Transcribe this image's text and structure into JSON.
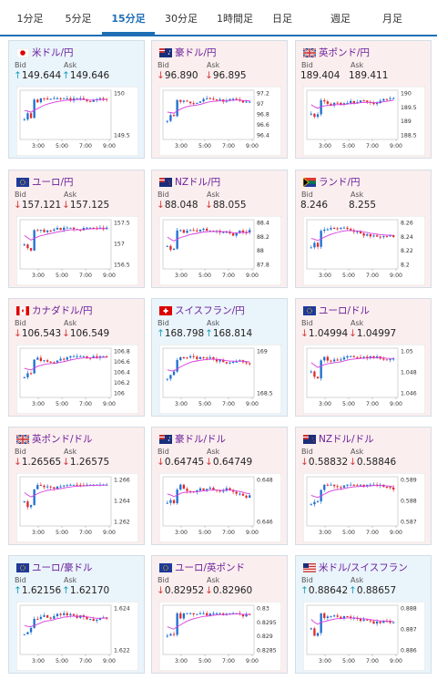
{
  "tabs": [
    "1分足",
    "5分足",
    "15分足",
    "30分足",
    "1時間足",
    "日足",
    "週足",
    "月足"
  ],
  "active_tab": "15分足",
  "bid_label": "Bid",
  "ask_label": "Ask",
  "arrow_up": "↑",
  "arrow_down": "↓",
  "colors": {
    "up_bg": "#eaf4fb",
    "down_bg": "#fbeeee",
    "bull": "#1f6fd0",
    "bear": "#e02b2b",
    "ma": "#d63ce0"
  },
  "cards": [
    {
      "pair": "米ドル/円",
      "flag": "jp",
      "dir": "up",
      "bid_arrow": "↑",
      "ask_arrow": "↑",
      "bid": "149.644",
      "ask": "149.646",
      "yticks": [
        "150",
        "149.5"
      ],
      "xticks": [
        "3:00",
        "5:00",
        "7:00",
        "9:00"
      ]
    },
    {
      "pair": "豪ドル/円",
      "flag": "au",
      "dir": "down",
      "bid_arrow": "↓",
      "ask_arrow": "↓",
      "bid": "96.890",
      "ask": "96.895",
      "yticks": [
        "97.2",
        "97",
        "96.8",
        "96.6",
        "96.4"
      ],
      "xticks": [
        "3:00",
        "5:00",
        "7:00",
        "9:00"
      ]
    },
    {
      "pair": "英ポンド/円",
      "flag": "gb",
      "dir": "down",
      "bid_arrow": "",
      "ask_arrow": "",
      "bid": "189.404",
      "ask": "189.411",
      "yticks": [
        "190",
        "189.5",
        "189",
        "188.5"
      ],
      "xticks": [
        "3:00",
        "5:00",
        "7:00",
        "9:00"
      ]
    },
    {
      "pair": "ユーロ/円",
      "flag": "eu",
      "dir": "down",
      "bid_arrow": "↓",
      "ask_arrow": "↓",
      "bid": "157.121",
      "ask": "157.125",
      "yticks": [
        "157.5",
        "157",
        "156.5"
      ],
      "xticks": [
        "3:00",
        "5:00",
        "7:00",
        "9:00"
      ]
    },
    {
      "pair": "NZドル/円",
      "flag": "nz",
      "dir": "down",
      "bid_arrow": "↓",
      "ask_arrow": "↓",
      "bid": "88.048",
      "ask": "88.055",
      "yticks": [
        "88.4",
        "88.2",
        "88",
        "87.8"
      ],
      "xticks": [
        "3:00",
        "5:00",
        "7:00",
        "9:00"
      ]
    },
    {
      "pair": "ランド/円",
      "flag": "za",
      "dir": "down",
      "bid_arrow": "",
      "ask_arrow": "",
      "bid": "8.246",
      "ask": "8.255",
      "yticks": [
        "8.26",
        "8.24",
        "8.22",
        "8.2"
      ],
      "xticks": [
        "3:00",
        "5:00",
        "7:00",
        "9:00"
      ]
    },
    {
      "pair": "カナダドル/円",
      "flag": "ca",
      "dir": "down",
      "bid_arrow": "↓",
      "ask_arrow": "↓",
      "bid": "106.543",
      "ask": "106.549",
      "yticks": [
        "106.8",
        "106.6",
        "106.4",
        "106.2",
        "106"
      ],
      "xticks": [
        "3:00",
        "5:00",
        "7:00",
        "9:00"
      ]
    },
    {
      "pair": "スイスフラン/円",
      "flag": "ch",
      "dir": "up",
      "bid_arrow": "↑",
      "ask_arrow": "↑",
      "bid": "168.798",
      "ask": "168.814",
      "yticks": [
        "169",
        "168.5"
      ],
      "xticks": [
        "3:00",
        "5:00",
        "7:00",
        "9:00"
      ]
    },
    {
      "pair": "ユーロ/ドル",
      "flag": "eu",
      "dir": "down",
      "bid_arrow": "↓",
      "ask_arrow": "↓",
      "bid": "1.04994",
      "ask": "1.04997",
      "yticks": [
        "1.05",
        "1.048",
        "1.046"
      ],
      "xticks": [
        "3:00",
        "5:00",
        "7:00",
        "9:00"
      ]
    },
    {
      "pair": "英ポンド/ドル",
      "flag": "gb",
      "dir": "down",
      "bid_arrow": "↓",
      "ask_arrow": "↓",
      "bid": "1.26565",
      "ask": "1.26575",
      "yticks": [
        "1.266",
        "1.264",
        "1.262"
      ],
      "xticks": [
        "3:00",
        "5:00",
        "7:00",
        "9:00"
      ]
    },
    {
      "pair": "豪ドル/ドル",
      "flag": "au",
      "dir": "down",
      "bid_arrow": "↓",
      "ask_arrow": "↓",
      "bid": "0.64745",
      "ask": "0.64749",
      "yticks": [
        "0.648",
        "0.646"
      ],
      "xticks": [
        "3:00",
        "5:00",
        "7:00",
        "9:00"
      ]
    },
    {
      "pair": "NZドル/ドル",
      "flag": "nz",
      "dir": "down",
      "bid_arrow": "↓",
      "ask_arrow": "↓",
      "bid": "0.58832",
      "ask": "0.58846",
      "yticks": [
        "0.589",
        "0.588",
        "0.587"
      ],
      "xticks": [
        "3:00",
        "5:00",
        "7:00",
        "9:00"
      ]
    },
    {
      "pair": "ユーロ/豪ドル",
      "flag": "eu",
      "dir": "up",
      "bid_arrow": "↑",
      "ask_arrow": "↑",
      "bid": "1.62156",
      "ask": "1.62170",
      "yticks": [
        "1.624",
        "1.622"
      ],
      "xticks": [
        "3:00",
        "5:00",
        "7:00",
        "9:00"
      ]
    },
    {
      "pair": "ユーロ/英ポンド",
      "flag": "eu",
      "dir": "down",
      "bid_arrow": "↓",
      "ask_arrow": "↓",
      "bid": "0.82952",
      "ask": "0.82960",
      "yticks": [
        "0.83",
        "0.8295",
        "0.829",
        "0.8285"
      ],
      "xticks": [
        "3:00",
        "5:00",
        "7:00",
        "9:00"
      ]
    },
    {
      "pair": "米ドル/スイスフラン",
      "flag": "us",
      "dir": "up",
      "bid_arrow": "↑",
      "ask_arrow": "↑",
      "bid": "0.88642",
      "ask": "0.88657",
      "yticks": [
        "0.888",
        "0.887",
        "0.886"
      ],
      "xticks": [
        "3:00",
        "5:00",
        "7:00",
        "9:00"
      ]
    }
  ]
}
